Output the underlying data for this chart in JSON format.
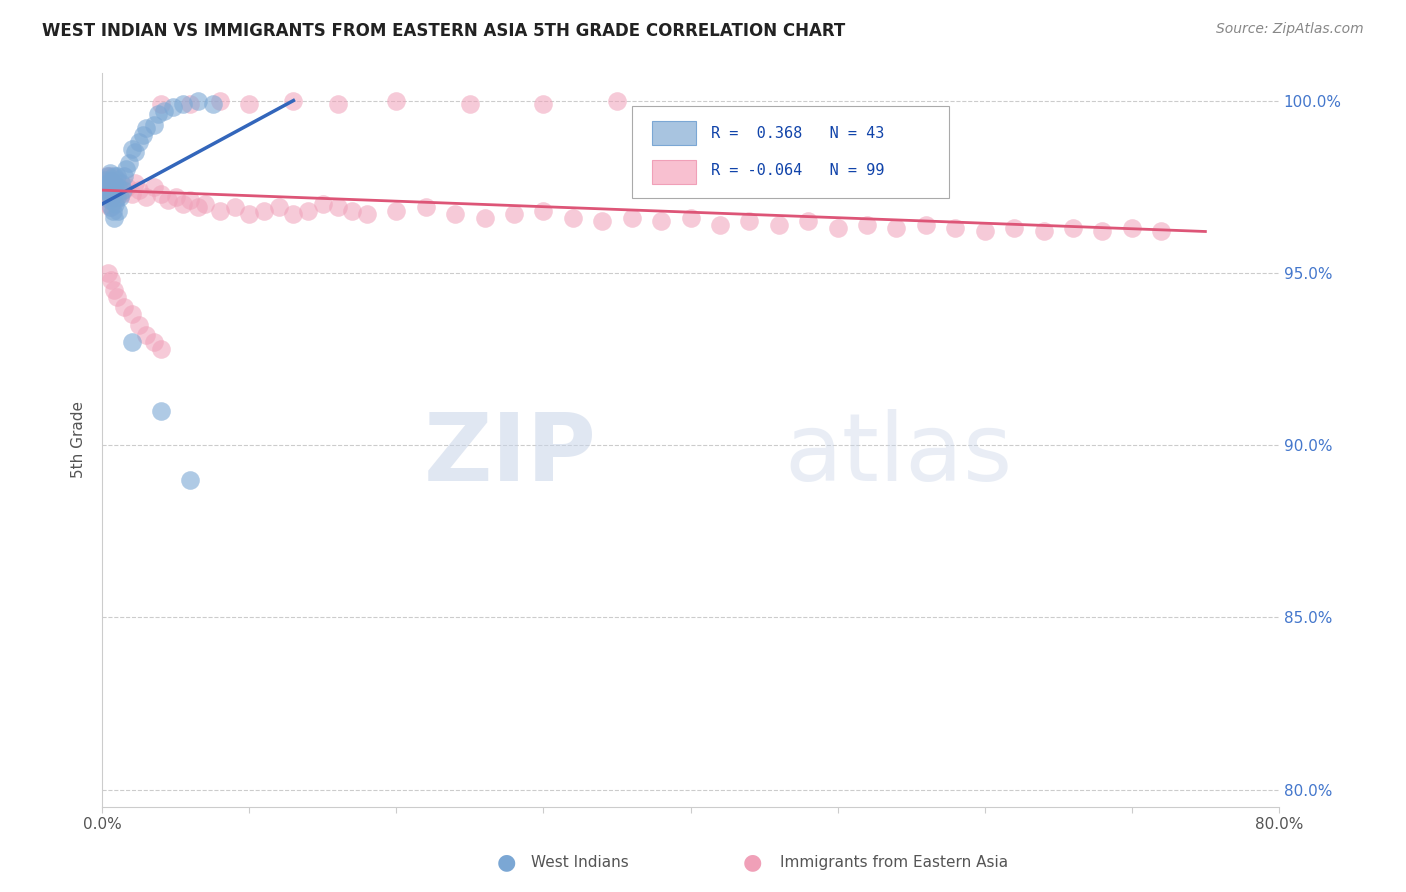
{
  "title": "WEST INDIAN VS IMMIGRANTS FROM EASTERN ASIA 5TH GRADE CORRELATION CHART",
  "source": "Source: ZipAtlas.com",
  "ylabel": "5th Grade",
  "watermark": "ZIPatlas",
  "xlim": [
    0.0,
    0.8
  ],
  "ylim": [
    0.795,
    1.008
  ],
  "xtick_positions": [
    0.0,
    0.1,
    0.2,
    0.3,
    0.4,
    0.5,
    0.6,
    0.7,
    0.8
  ],
  "xticklabels": [
    "0.0%",
    "",
    "",
    "",
    "",
    "",
    "",
    "",
    "80.0%"
  ],
  "ytick_positions": [
    0.8,
    0.85,
    0.9,
    0.95,
    1.0
  ],
  "yticklabels_right": [
    "80.0%",
    "85.0%",
    "90.0%",
    "95.0%",
    "100.0%"
  ],
  "legend_blue_r": "0.368",
  "legend_blue_n": "43",
  "legend_pink_r": "-0.064",
  "legend_pink_n": "99",
  "blue_dot_color": "#7BA7D4",
  "pink_dot_color": "#F0A0B8",
  "blue_line_color": "#3366BB",
  "pink_line_color": "#DD5577",
  "right_axis_color": "#4477CC",
  "west_indian_x": [
    0.001,
    0.002,
    0.003,
    0.004,
    0.004,
    0.005,
    0.005,
    0.005,
    0.006,
    0.006,
    0.006,
    0.007,
    0.007,
    0.008,
    0.008,
    0.008,
    0.009,
    0.009,
    0.01,
    0.01,
    0.011,
    0.011,
    0.012,
    0.013,
    0.014,
    0.015,
    0.016,
    0.018,
    0.02,
    0.022,
    0.025,
    0.028,
    0.03,
    0.035,
    0.038,
    0.042,
    0.048,
    0.055,
    0.065,
    0.075,
    0.02,
    0.04,
    0.06
  ],
  "west_indian_y": [
    0.974,
    0.977,
    0.975,
    0.978,
    0.976,
    0.979,
    0.973,
    0.971,
    0.977,
    0.972,
    0.969,
    0.975,
    0.968,
    0.978,
    0.973,
    0.966,
    0.975,
    0.97,
    0.978,
    0.972,
    0.975,
    0.968,
    0.972,
    0.976,
    0.974,
    0.978,
    0.98,
    0.982,
    0.986,
    0.985,
    0.988,
    0.99,
    0.992,
    0.993,
    0.996,
    0.997,
    0.998,
    0.999,
    1.0,
    0.999,
    0.93,
    0.91,
    0.89
  ],
  "eastern_asia_x": [
    0.001,
    0.002,
    0.002,
    0.003,
    0.003,
    0.003,
    0.004,
    0.004,
    0.004,
    0.005,
    0.005,
    0.005,
    0.005,
    0.006,
    0.006,
    0.007,
    0.007,
    0.008,
    0.008,
    0.009,
    0.009,
    0.01,
    0.01,
    0.011,
    0.012,
    0.013,
    0.015,
    0.017,
    0.02,
    0.022,
    0.025,
    0.03,
    0.035,
    0.04,
    0.045,
    0.05,
    0.055,
    0.06,
    0.065,
    0.07,
    0.08,
    0.09,
    0.1,
    0.11,
    0.12,
    0.13,
    0.14,
    0.15,
    0.16,
    0.17,
    0.18,
    0.2,
    0.22,
    0.24,
    0.26,
    0.28,
    0.3,
    0.32,
    0.34,
    0.36,
    0.38,
    0.4,
    0.42,
    0.44,
    0.46,
    0.48,
    0.5,
    0.52,
    0.54,
    0.56,
    0.58,
    0.6,
    0.62,
    0.64,
    0.66,
    0.68,
    0.7,
    0.72,
    0.04,
    0.06,
    0.08,
    0.1,
    0.13,
    0.16,
    0.2,
    0.25,
    0.3,
    0.35,
    0.004,
    0.006,
    0.008,
    0.01,
    0.015,
    0.02,
    0.025,
    0.03,
    0.035,
    0.04
  ],
  "eastern_asia_y": [
    0.975,
    0.977,
    0.973,
    0.978,
    0.975,
    0.972,
    0.977,
    0.974,
    0.97,
    0.978,
    0.975,
    0.972,
    0.969,
    0.976,
    0.972,
    0.977,
    0.973,
    0.976,
    0.972,
    0.975,
    0.971,
    0.977,
    0.973,
    0.974,
    0.975,
    0.973,
    0.974,
    0.975,
    0.973,
    0.976,
    0.974,
    0.972,
    0.975,
    0.973,
    0.971,
    0.972,
    0.97,
    0.971,
    0.969,
    0.97,
    0.968,
    0.969,
    0.967,
    0.968,
    0.969,
    0.967,
    0.968,
    0.97,
    0.969,
    0.968,
    0.967,
    0.968,
    0.969,
    0.967,
    0.966,
    0.967,
    0.968,
    0.966,
    0.965,
    0.966,
    0.965,
    0.966,
    0.964,
    0.965,
    0.964,
    0.965,
    0.963,
    0.964,
    0.963,
    0.964,
    0.963,
    0.962,
    0.963,
    0.962,
    0.963,
    0.962,
    0.963,
    0.962,
    0.999,
    0.999,
    1.0,
    0.999,
    1.0,
    0.999,
    1.0,
    0.999,
    0.999,
    1.0,
    0.95,
    0.948,
    0.945,
    0.943,
    0.94,
    0.938,
    0.935,
    0.932,
    0.93,
    0.928
  ],
  "blue_trendline_x": [
    0.0,
    0.13
  ],
  "blue_trendline_y": [
    0.97,
    1.0
  ],
  "pink_trendline_x": [
    0.0,
    0.75
  ],
  "pink_trendline_y": [
    0.974,
    0.962
  ]
}
